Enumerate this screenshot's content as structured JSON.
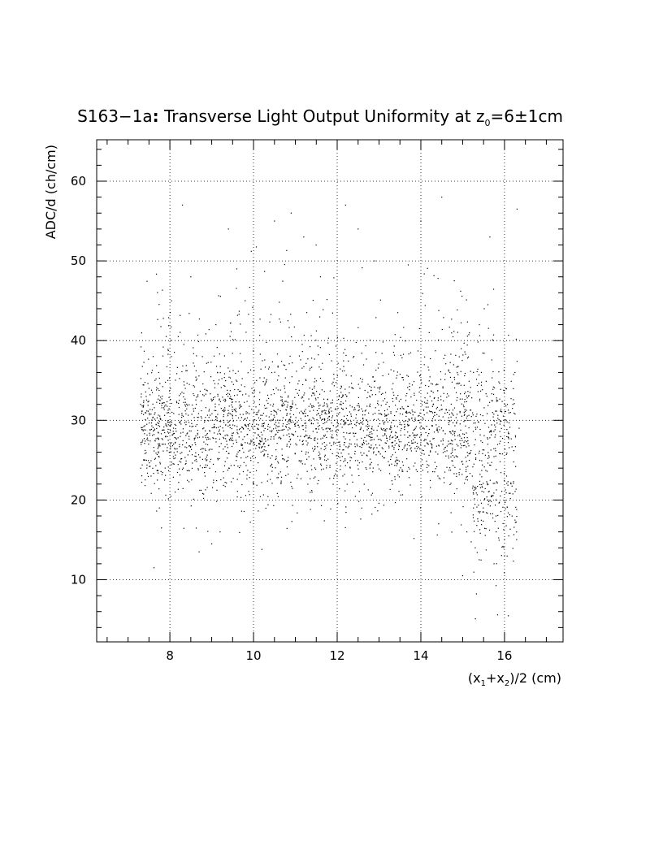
{
  "chart_data": {
    "type": "scatter",
    "title": {
      "prefix": "S163−1a",
      "colon": ":",
      "main": " Transverse Light Output Uniformity at z",
      "sub": "0",
      "suffix": "=6±1cm"
    },
    "xlabel": {
      "p1": "(x",
      "s1": "1",
      "p2": "+x",
      "s2": "2",
      "p3": ")/2 (cm)"
    },
    "ylabel": "ADC/d (ch/cm)",
    "xlim": [
      6.25,
      17.4
    ],
    "ylim": [
      2.2,
      65.2
    ],
    "x_ticks": [
      "8",
      "10",
      "12",
      "14",
      "16"
    ],
    "y_ticks": [
      "10",
      "20",
      "30",
      "40",
      "50",
      "60"
    ],
    "grid": true,
    "marker_color": "#000000",
    "points": [
      [
        7.3,
        32.0
      ],
      [
        7.35,
        27.5
      ],
      [
        7.4,
        25.0
      ],
      [
        7.45,
        29.5
      ],
      [
        7.5,
        34.0
      ],
      [
        7.55,
        23.0
      ],
      [
        7.6,
        38.0
      ],
      [
        7.62,
        11.5
      ],
      [
        7.7,
        22.5
      ],
      [
        7.75,
        19.0
      ],
      [
        7.8,
        16.5
      ],
      [
        7.9,
        28.0
      ],
      [
        7.95,
        35.0
      ],
      [
        8.0,
        26.0
      ],
      [
        8.05,
        31.0
      ],
      [
        8.1,
        24.5
      ],
      [
        8.2,
        40.5
      ],
      [
        8.3,
        57.0
      ],
      [
        8.5,
        48.0
      ],
      [
        8.6,
        25.5
      ],
      [
        8.7,
        13.5
      ],
      [
        9.0,
        14.5
      ],
      [
        9.2,
        16.0
      ],
      [
        9.4,
        54.0
      ],
      [
        9.6,
        49.0
      ],
      [
        9.8,
        45.0
      ],
      [
        10.0,
        22.0
      ],
      [
        10.2,
        13.8
      ],
      [
        10.5,
        55.0
      ],
      [
        10.9,
        56.0
      ],
      [
        11.2,
        53.0
      ],
      [
        11.6,
        48.0
      ],
      [
        12.0,
        23.0
      ],
      [
        12.2,
        57.0
      ],
      [
        12.5,
        54.0
      ],
      [
        12.9,
        50.0
      ],
      [
        13.3,
        24.5
      ],
      [
        13.7,
        49.5
      ],
      [
        14.0,
        55.0
      ],
      [
        14.2,
        41.0
      ],
      [
        14.5,
        58.0
      ],
      [
        14.8,
        47.5
      ],
      [
        15.0,
        10.5
      ],
      [
        15.1,
        16.0
      ],
      [
        15.3,
        14.0
      ],
      [
        15.4,
        42.0
      ],
      [
        15.5,
        18.5
      ],
      [
        15.6,
        27.0
      ],
      [
        15.65,
        53.0
      ],
      [
        15.75,
        12.0
      ],
      [
        15.8,
        16.0
      ],
      [
        15.9,
        20.5
      ],
      [
        16.0,
        13.0
      ],
      [
        16.05,
        23.0
      ],
      [
        16.1,
        15.5
      ],
      [
        16.2,
        32.0
      ],
      [
        16.25,
        36.0
      ],
      [
        16.3,
        56.5
      ],
      [
        16.35,
        29.0
      ]
    ],
    "density_band": {
      "x_range": [
        7.3,
        16.3
      ],
      "y_mean": 28.5,
      "y_spread": 3.0,
      "n_points": 3000
    }
  }
}
